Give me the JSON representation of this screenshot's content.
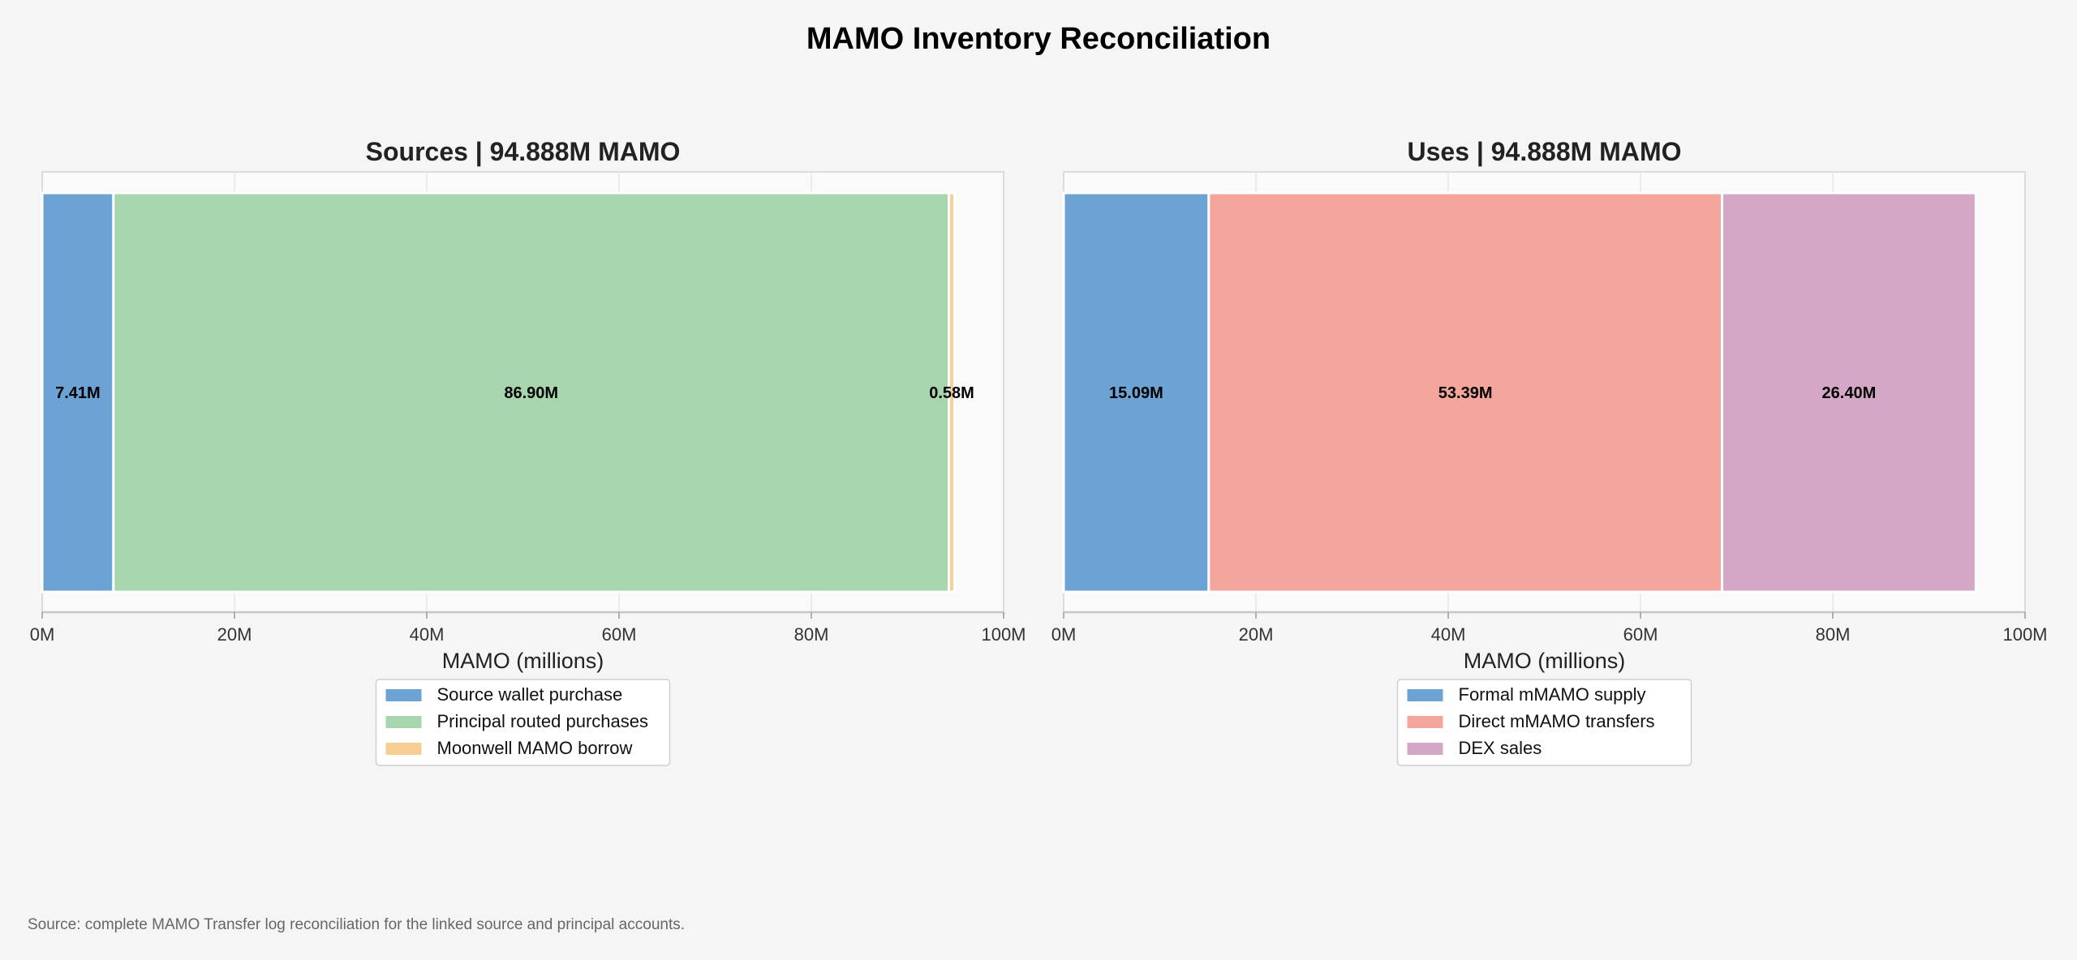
{
  "title": "MAMO Inventory Reconciliation",
  "source_note": "Source: complete MAMO Transfer log reconciliation for the linked source and principal accounts.",
  "colors": {
    "background": "#f5f5f5",
    "plot_background": "#fafafa",
    "blue": "#6ca3d4",
    "green": "#a6d5ae",
    "orange": "#f7cf94",
    "red": "#f5a69c",
    "purple": "#d5a7c7"
  },
  "chart_data": [
    {
      "type": "bar",
      "orientation": "horizontal-stacked",
      "title": "Sources | 94.888M MAMO",
      "xlabel": "MAMO (millions)",
      "ylabel": "",
      "xlim": [
        0,
        100
      ],
      "x_ticks": [
        "0M",
        "20M",
        "40M",
        "60M",
        "80M",
        "100M"
      ],
      "x_tick_values": [
        0,
        20,
        40,
        60,
        80,
        100
      ],
      "grid": true,
      "legend_position": "bottom-center",
      "series": [
        {
          "name": "Source wallet purchase",
          "value": 7.41,
          "label": "7.41M",
          "color": "#6ca3d4"
        },
        {
          "name": "Principal routed purchases",
          "value": 86.9,
          "label": "86.90M",
          "color": "#a6d5ae"
        },
        {
          "name": "Moonwell MAMO borrow",
          "value": 0.58,
          "label": "0.58M",
          "color": "#f7cf94"
        }
      ]
    },
    {
      "type": "bar",
      "orientation": "horizontal-stacked",
      "title": "Uses | 94.888M MAMO",
      "xlabel": "MAMO (millions)",
      "ylabel": "",
      "xlim": [
        0,
        100
      ],
      "x_ticks": [
        "0M",
        "20M",
        "40M",
        "60M",
        "80M",
        "100M"
      ],
      "x_tick_values": [
        0,
        20,
        40,
        60,
        80,
        100
      ],
      "grid": true,
      "legend_position": "bottom-center",
      "series": [
        {
          "name": "Formal mMAMO supply",
          "value": 15.09,
          "label": "15.09M",
          "color": "#6ca3d4"
        },
        {
          "name": "Direct mMAMO transfers",
          "value": 53.39,
          "label": "53.39M",
          "color": "#f5a69c"
        },
        {
          "name": "DEX sales",
          "value": 26.4,
          "label": "26.40M",
          "color": "#d5a7c7"
        }
      ]
    }
  ]
}
